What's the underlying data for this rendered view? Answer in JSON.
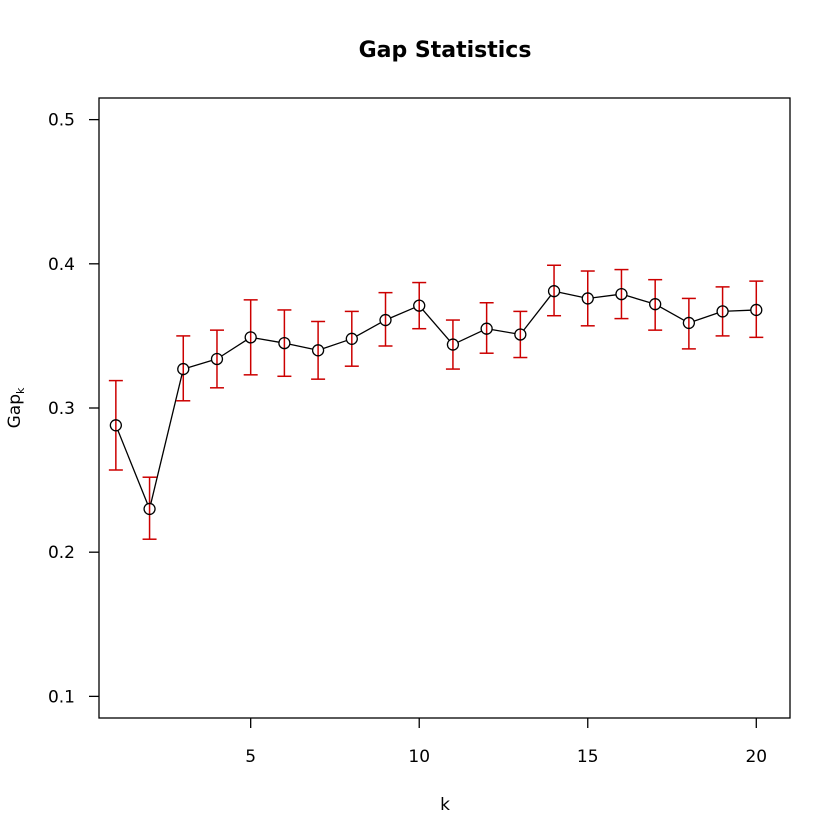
{
  "chart_data": {
    "type": "scatter",
    "title": "Gap Statistics",
    "xlabel": "k",
    "ylabel": "Gap",
    "ylabel_subscript": "k",
    "xlim": [
      0.5,
      21
    ],
    "ylim": [
      0.085,
      0.515
    ],
    "x_ticks": [
      5,
      10,
      15,
      20
    ],
    "y_ticks": [
      0.1,
      0.2,
      0.3,
      0.4,
      0.5
    ],
    "x_tick_labels": [
      "5",
      "10",
      "15",
      "20"
    ],
    "y_tick_labels": [
      "0.1",
      "0.2",
      "0.3",
      "0.4",
      "0.5"
    ],
    "grid": false,
    "line_color": "#000000",
    "errorbar_color": "#cc0000",
    "series": [
      {
        "x": [
          1,
          2,
          3,
          4,
          5,
          6,
          7,
          8,
          9,
          10,
          11,
          12,
          13,
          14,
          15,
          16,
          17,
          18,
          19,
          20
        ],
        "y": [
          0.288,
          0.23,
          0.327,
          0.334,
          0.349,
          0.345,
          0.34,
          0.348,
          0.361,
          0.371,
          0.344,
          0.355,
          0.351,
          0.381,
          0.376,
          0.379,
          0.372,
          0.359,
          0.367,
          0.368
        ],
        "y_lower": [
          0.257,
          0.209,
          0.305,
          0.314,
          0.323,
          0.322,
          0.32,
          0.329,
          0.343,
          0.355,
          0.327,
          0.338,
          0.335,
          0.364,
          0.357,
          0.362,
          0.354,
          0.341,
          0.35,
          0.349
        ],
        "y_upper": [
          0.319,
          0.252,
          0.35,
          0.354,
          0.375,
          0.368,
          0.36,
          0.367,
          0.38,
          0.387,
          0.361,
          0.373,
          0.367,
          0.399,
          0.395,
          0.396,
          0.389,
          0.376,
          0.384,
          0.388
        ]
      }
    ]
  }
}
